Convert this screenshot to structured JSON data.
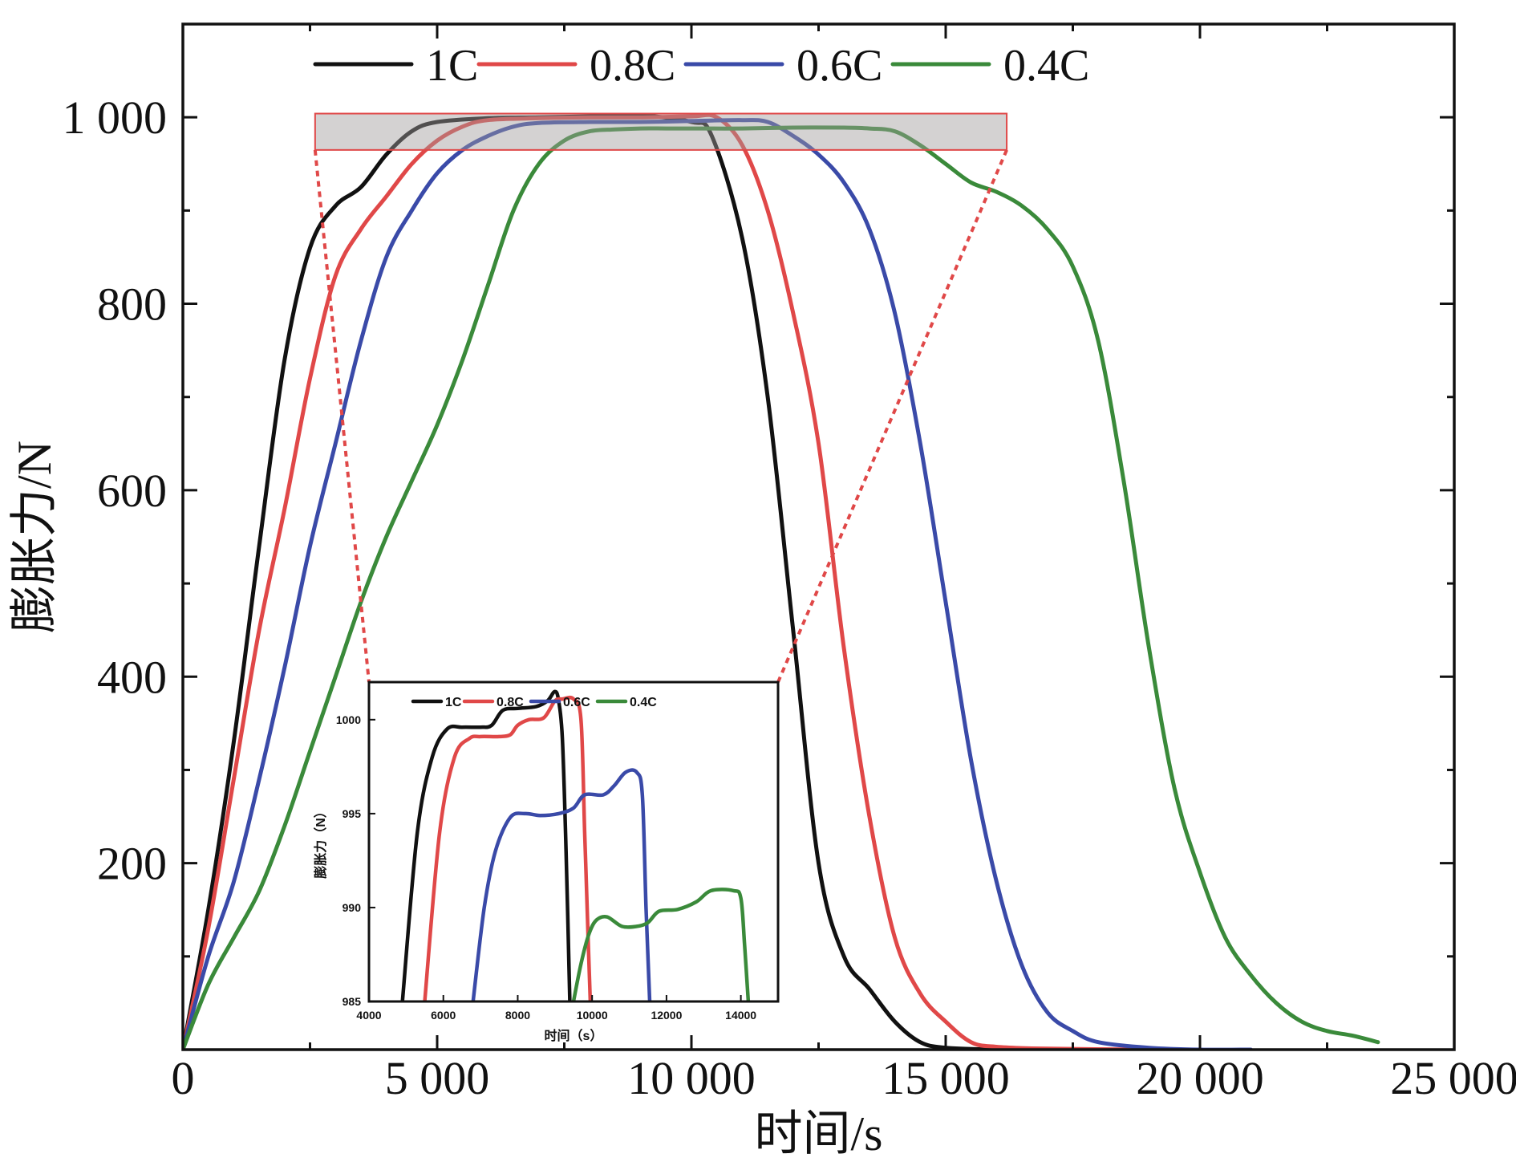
{
  "chart_data": [
    {
      "type": "line",
      "title": "",
      "xlabel": "时间/s",
      "ylabel": "膨胀力/N",
      "xlim": [
        0,
        25000
      ],
      "ylim": [
        0,
        1100
      ],
      "xticks": [
        0,
        5000,
        10000,
        15000,
        20000,
        25000
      ],
      "xtick_labels": [
        "0",
        "5 000",
        "10 000",
        "15 000",
        "20 000",
        "25 000"
      ],
      "yticks": [
        200,
        400,
        600,
        800,
        1000
      ],
      "ytick_labels": [
        "200",
        "400",
        "600",
        "800",
        "1 000"
      ],
      "legend_position": "top",
      "grid": false,
      "series": [
        {
          "name": "1C",
          "color": "#111111",
          "points": [
            [
              0,
              0
            ],
            [
              500,
              150
            ],
            [
              1000,
              330
            ],
            [
              1500,
              540
            ],
            [
              2000,
              740
            ],
            [
              2500,
              860
            ],
            [
              3000,
              905
            ],
            [
              3500,
              925
            ],
            [
              4000,
              960
            ],
            [
              4500,
              985
            ],
            [
              5000,
              995
            ],
            [
              6000,
              999
            ],
            [
              7000,
              1000
            ],
            [
              8000,
              1001
            ],
            [
              9000,
              1002
            ],
            [
              10000,
              995
            ],
            [
              10400,
              980
            ],
            [
              11000,
              870
            ],
            [
              11500,
              700
            ],
            [
              12000,
              450
            ],
            [
              12500,
              200
            ],
            [
              13000,
              100
            ],
            [
              13500,
              65
            ],
            [
              14000,
              30
            ],
            [
              14500,
              8
            ],
            [
              15000,
              2
            ],
            [
              16000,
              0
            ]
          ]
        },
        {
          "name": "0.8C",
          "color": "#e04848",
          "points": [
            [
              0,
              0
            ],
            [
              500,
              130
            ],
            [
              1000,
              290
            ],
            [
              1500,
              450
            ],
            [
              2000,
              580
            ],
            [
              2500,
              720
            ],
            [
              3000,
              830
            ],
            [
              3500,
              880
            ],
            [
              4000,
              915
            ],
            [
              4500,
              950
            ],
            [
              5000,
              975
            ],
            [
              5500,
              990
            ],
            [
              6000,
              997
            ],
            [
              7000,
              999
            ],
            [
              8000,
              1000
            ],
            [
              9000,
              1000
            ],
            [
              10000,
              1001
            ],
            [
              10500,
              1000
            ],
            [
              11000,
              970
            ],
            [
              11500,
              900
            ],
            [
              12000,
              790
            ],
            [
              12500,
              650
            ],
            [
              13000,
              430
            ],
            [
              13500,
              250
            ],
            [
              14000,
              120
            ],
            [
              14500,
              60
            ],
            [
              15000,
              30
            ],
            [
              15500,
              8
            ],
            [
              16000,
              3
            ],
            [
              17000,
              1
            ],
            [
              19000,
              0
            ]
          ]
        },
        {
          "name": "0.6C",
          "color": "#3a4aa8",
          "points": [
            [
              0,
              0
            ],
            [
              500,
              100
            ],
            [
              1000,
              180
            ],
            [
              1500,
              290
            ],
            [
              2000,
              410
            ],
            [
              2500,
              540
            ],
            [
              3000,
              650
            ],
            [
              3500,
              760
            ],
            [
              4000,
              850
            ],
            [
              4500,
              900
            ],
            [
              5000,
              940
            ],
            [
              5500,
              965
            ],
            [
              6000,
              980
            ],
            [
              6500,
              990
            ],
            [
              7000,
              994
            ],
            [
              8000,
              995
            ],
            [
              9000,
              995
            ],
            [
              10000,
              996
            ],
            [
              11000,
              997
            ],
            [
              11500,
              995
            ],
            [
              12000,
              980
            ],
            [
              12500,
              960
            ],
            [
              13000,
              930
            ],
            [
              13500,
              880
            ],
            [
              14000,
              790
            ],
            [
              14500,
              650
            ],
            [
              15000,
              480
            ],
            [
              15500,
              310
            ],
            [
              16000,
              180
            ],
            [
              16500,
              90
            ],
            [
              17000,
              40
            ],
            [
              17500,
              20
            ],
            [
              18000,
              8
            ],
            [
              19000,
              2
            ],
            [
              20000,
              0
            ],
            [
              21000,
              0
            ]
          ]
        },
        {
          "name": "0.4C",
          "color": "#3a8a3a",
          "points": [
            [
              0,
              0
            ],
            [
              500,
              70
            ],
            [
              1000,
              120
            ],
            [
              1500,
              170
            ],
            [
              2000,
              240
            ],
            [
              2500,
              320
            ],
            [
              3000,
              400
            ],
            [
              3500,
              480
            ],
            [
              4000,
              550
            ],
            [
              4500,
              610
            ],
            [
              5000,
              670
            ],
            [
              5500,
              740
            ],
            [
              6000,
              820
            ],
            [
              6500,
              900
            ],
            [
              7000,
              950
            ],
            [
              7500,
              975
            ],
            [
              8000,
              985
            ],
            [
              8500,
              987
            ],
            [
              9000,
              988
            ],
            [
              9500,
              988
            ],
            [
              10000,
              988
            ],
            [
              11000,
              988
            ],
            [
              12000,
              989
            ],
            [
              13000,
              989
            ],
            [
              13500,
              988
            ],
            [
              14000,
              985
            ],
            [
              14500,
              970
            ],
            [
              15000,
              950
            ],
            [
              15500,
              930
            ],
            [
              16000,
              920
            ],
            [
              16500,
              905
            ],
            [
              17000,
              880
            ],
            [
              17500,
              840
            ],
            [
              18000,
              760
            ],
            [
              18500,
              610
            ],
            [
              19000,
              430
            ],
            [
              19500,
              280
            ],
            [
              20000,
              190
            ],
            [
              20500,
              120
            ],
            [
              21000,
              80
            ],
            [
              21500,
              50
            ],
            [
              22000,
              30
            ],
            [
              22500,
              20
            ],
            [
              23000,
              15
            ],
            [
              23500,
              8
            ]
          ]
        }
      ]
    },
    {
      "type": "line",
      "title": "",
      "xlabel": "时间（s）",
      "ylabel": "膨胀力（N）",
      "xlim": [
        4000,
        15000
      ],
      "ylim": [
        985,
        1002
      ],
      "xticks": [
        4000,
        6000,
        8000,
        10000,
        12000,
        14000
      ],
      "xtick_labels": [
        "4000",
        "6000",
        "8000",
        "10000",
        "12000",
        "14000"
      ],
      "yticks": [
        985,
        990,
        995,
        1000
      ],
      "ytick_labels": [
        "985",
        "990",
        "995",
        "1000"
      ],
      "legend_position": "top",
      "grid": false,
      "series": [
        {
          "name": "1C",
          "color": "#111111",
          "points": [
            [
              4900,
              985
            ],
            [
              5300,
              994
            ],
            [
              5700,
              998
            ],
            [
              6100,
              999.5
            ],
            [
              6500,
              999.6
            ],
            [
              7000,
              999.6
            ],
            [
              7300,
              999.7
            ],
            [
              7600,
              1000.5
            ],
            [
              8000,
              1000.6
            ],
            [
              8500,
              1000.7
            ],
            [
              8800,
              1001
            ],
            [
              9000,
              1001.5
            ],
            [
              9100,
              1001
            ],
            [
              9200,
              999
            ],
            [
              9300,
              993
            ],
            [
              9400,
              985
            ]
          ]
        },
        {
          "name": "0.8C",
          "color": "#e04848",
          "points": [
            [
              5500,
              985
            ],
            [
              5900,
              994
            ],
            [
              6300,
              998
            ],
            [
              6700,
              999
            ],
            [
              7000,
              999.1
            ],
            [
              7500,
              999.1
            ],
            [
              7800,
              999.2
            ],
            [
              8000,
              999.7
            ],
            [
              8300,
              1000
            ],
            [
              8700,
              1000.1
            ],
            [
              9000,
              1001
            ],
            [
              9200,
              1001.1
            ],
            [
              9500,
              1001.1
            ],
            [
              9700,
              1000
            ],
            [
              9800,
              994
            ],
            [
              9900,
              988
            ],
            [
              9950,
              985
            ]
          ]
        },
        {
          "name": "0.6C",
          "color": "#3a4aa8",
          "points": [
            [
              6800,
              985
            ],
            [
              7100,
              990
            ],
            [
              7400,
              993
            ],
            [
              7800,
              994.8
            ],
            [
              8200,
              995
            ],
            [
              8600,
              994.9
            ],
            [
              9100,
              995
            ],
            [
              9500,
              995.3
            ],
            [
              9800,
              996
            ],
            [
              10300,
              996
            ],
            [
              10600,
              996.5
            ],
            [
              10900,
              997.2
            ],
            [
              11200,
              997.2
            ],
            [
              11350,
              996
            ],
            [
              11450,
              990
            ],
            [
              11550,
              985
            ]
          ]
        },
        {
          "name": "0.4C",
          "color": "#3a8a3a",
          "points": [
            [
              9500,
              985
            ],
            [
              9700,
              987
            ],
            [
              9900,
              988.5
            ],
            [
              10100,
              989.3
            ],
            [
              10400,
              989.5
            ],
            [
              10800,
              989
            ],
            [
              11200,
              989
            ],
            [
              11500,
              989.2
            ],
            [
              11800,
              989.8
            ],
            [
              12300,
              989.9
            ],
            [
              12800,
              990.3
            ],
            [
              13200,
              990.9
            ],
            [
              13800,
              990.9
            ],
            [
              14000,
              990.5
            ],
            [
              14100,
              988
            ],
            [
              14200,
              985
            ]
          ]
        }
      ]
    }
  ]
}
